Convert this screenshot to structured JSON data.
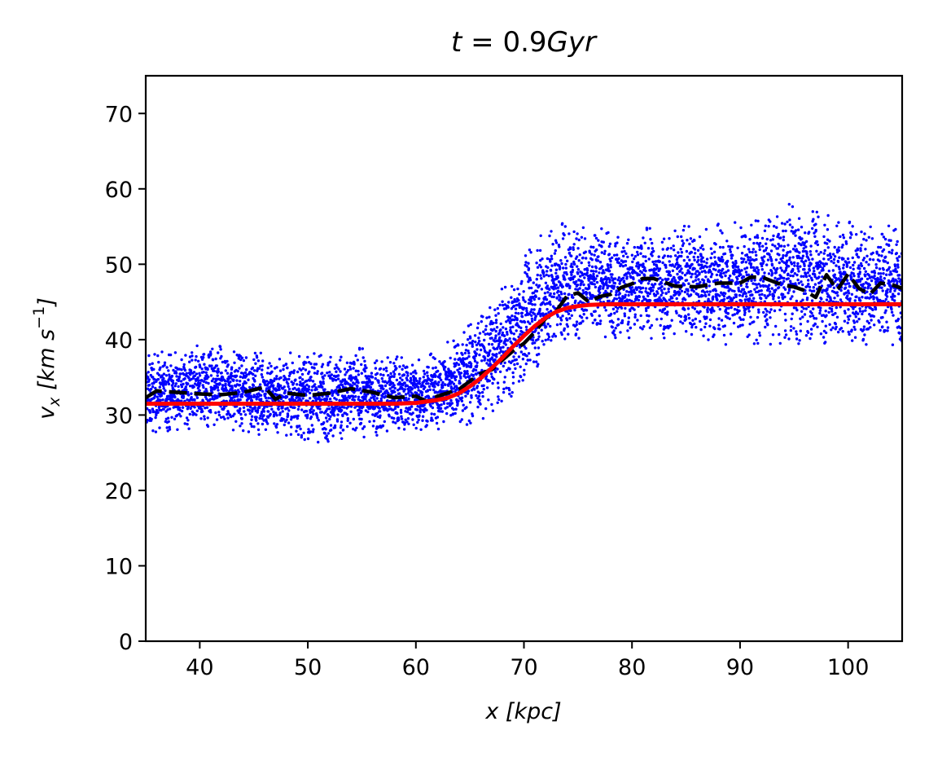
{
  "chart_data": {
    "type": "scatter",
    "title": "t = 0.9Gyr",
    "xlabel": "x [kpc]",
    "ylabel": "v_x [km s^-1]",
    "xlim": [
      35,
      105
    ],
    "ylim": [
      0,
      75
    ],
    "x_ticks": [
      "40",
      "50",
      "60",
      "70",
      "80",
      "90",
      "100"
    ],
    "y_ticks": [
      "0",
      "10",
      "20",
      "30",
      "40",
      "50",
      "60",
      "70"
    ],
    "grid": false,
    "legend": "none",
    "series": [
      {
        "kind": "scatter",
        "color": "#0000ff",
        "envelope_x": [
          35,
          40,
          45,
          50,
          55,
          60,
          62,
          64,
          66,
          68,
          70,
          72,
          74,
          76,
          78,
          80,
          85,
          90,
          95,
          100,
          105
        ],
        "envelope_low": [
          27.5,
          28.0,
          27.5,
          26.0,
          26.5,
          27.5,
          28.0,
          28.0,
          29.0,
          31.0,
          33.5,
          37.0,
          39.0,
          40.0,
          40.0,
          39.5,
          39.5,
          39.0,
          39.0,
          38.5,
          39.0
        ],
        "envelope_high": [
          38.0,
          39.5,
          38.5,
          38.5,
          39.0,
          38.0,
          38.5,
          41.0,
          44.0,
          47.0,
          51.5,
          55.0,
          56.0,
          55.5,
          55.0,
          54.5,
          56.0,
          55.5,
          58.5,
          56.0,
          55.5
        ]
      },
      {
        "kind": "line",
        "style": "dashed",
        "color": "#000000",
        "x": [
          35,
          36,
          38,
          40,
          42,
          44,
          46,
          47,
          48,
          50,
          52,
          54,
          56,
          58,
          60,
          61,
          62,
          64,
          65,
          66,
          67,
          68,
          69,
          70,
          71,
          72,
          73,
          74,
          75,
          76,
          77,
          78,
          79,
          80,
          81,
          82,
          84,
          86,
          88,
          90,
          91,
          92,
          94,
          95,
          96,
          97,
          98,
          99,
          100,
          101,
          102,
          103,
          104,
          105
        ],
        "y": [
          32.3,
          33.2,
          33.0,
          32.8,
          32.7,
          33.0,
          33.7,
          32.1,
          32.9,
          32.6,
          32.9,
          33.5,
          33.0,
          32.3,
          32.5,
          31.8,
          32.5,
          33.4,
          34.5,
          35.5,
          36.0,
          37.3,
          38.5,
          39.5,
          41.0,
          42.8,
          43.8,
          45.8,
          46.2,
          45.0,
          45.7,
          46.0,
          46.9,
          47.4,
          48.1,
          48.1,
          47.1,
          47.0,
          47.5,
          47.5,
          48.3,
          48.3,
          47.2,
          47.0,
          46.5,
          45.6,
          48.6,
          46.6,
          48.7,
          46.8,
          46.0,
          47.5,
          47.3,
          46.8
        ]
      },
      {
        "kind": "line",
        "style": "solid",
        "color": "#ff0000",
        "x": [
          35,
          40,
          50,
          55,
          58,
          60,
          62,
          63,
          64,
          65,
          66,
          67,
          68,
          69,
          70,
          71,
          72,
          73,
          74,
          75,
          76,
          77,
          78,
          79,
          80,
          85,
          90,
          95,
          100,
          105
        ],
        "y": [
          31.5,
          31.5,
          31.5,
          31.5,
          31.5,
          31.6,
          32.0,
          32.3,
          32.9,
          33.8,
          34.9,
          36.2,
          37.6,
          39.1,
          40.5,
          41.8,
          42.9,
          43.7,
          44.2,
          44.45,
          44.6,
          44.65,
          44.7,
          44.7,
          44.7,
          44.7,
          44.7,
          44.7,
          44.7,
          44.7
        ]
      }
    ]
  }
}
